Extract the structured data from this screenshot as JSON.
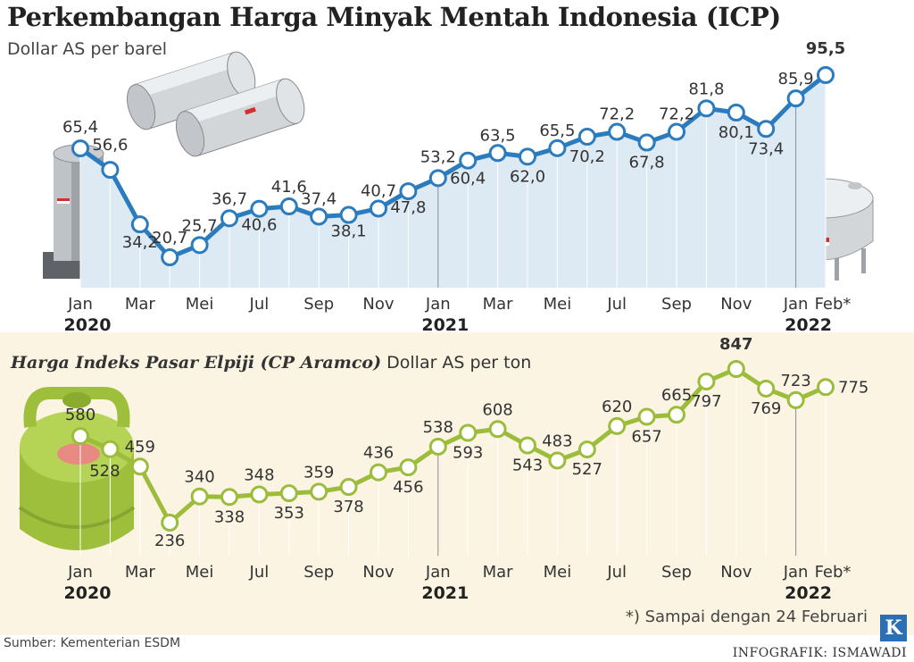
{
  "header": {
    "title": "Perkembangan Harga Minyak Mentah Indonesia (ICP)",
    "subtitle": "Dollar AS per barel"
  },
  "lpg_header": {
    "title": "Harga Indeks Pasar Elpiji (CP Aramco)",
    "unit": "Dollar AS per ton"
  },
  "footer": {
    "footnote": "*) Sampai dengan 24 Februari",
    "source": "Sumber: Kementerian ESDM",
    "credit": "INFOGRAFIK: ISMAWADI",
    "logo": "K"
  },
  "colors": {
    "icp_line": "#2b7bbf",
    "icp_area": "#dde9f3",
    "lpg_line": "#9cbd3b",
    "lpg_band": "#fbf4e2"
  },
  "icons": [
    "oil-storage-tanks-icon",
    "oil-silo-icon",
    "round-oil-tank-icon",
    "lpg-gas-cylinder-icon"
  ],
  "chart_data": [
    {
      "type": "line",
      "name": "icp",
      "title": "Perkembangan Harga Minyak Mentah Indonesia (ICP)",
      "ylabel": "Dollar AS per barel",
      "x": [
        "Jan 2020",
        "Feb 2020",
        "Mar 2020",
        "Apr 2020",
        "Mei 2020",
        "Jun 2020",
        "Jul 2020",
        "Agu 2020",
        "Sep 2020",
        "Okt 2020",
        "Nov 2020",
        "Des 2020",
        "Jan 2021",
        "Feb 2021",
        "Mar 2021",
        "Apr 2021",
        "Mei 2021",
        "Jun 2021",
        "Jul 2021",
        "Agu 2021",
        "Sep 2021",
        "Okt 2021",
        "Nov 2021",
        "Des 2021",
        "Jan 2022",
        "Feb 2022"
      ],
      "values": [
        65.4,
        56.6,
        34.2,
        20.7,
        25.7,
        36.7,
        40.6,
        41.6,
        37.4,
        38.1,
        40.7,
        47.8,
        53.2,
        60.4,
        63.5,
        62.0,
        65.5,
        70.2,
        72.2,
        67.8,
        72.2,
        81.8,
        80.1,
        73.4,
        85.9,
        95.5
      ],
      "value_labels": [
        "65,4",
        "56,6",
        "34,2",
        "20,7",
        "25,7",
        "36,7",
        "40,6",
        "41,6",
        "37,4",
        "38,1",
        "40,7",
        "47,8",
        "53,2",
        "60,4",
        "63,5",
        "62,0",
        "65,5",
        "70,2",
        "72,2",
        "67,8",
        "72,2",
        "81,8",
        "80,1",
        "73,4",
        "85,9",
        "95,5"
      ],
      "highlight_last": true,
      "ylim": [
        0,
        100
      ],
      "tick_labels": [
        "Jan",
        "Mar",
        "Mei",
        "Jul",
        "Sep",
        "Nov",
        "Jan",
        "Mar",
        "Mei",
        "Jul",
        "Sep",
        "Nov",
        "Jan",
        "Feb*"
      ],
      "year_labels": [
        "2020",
        "2021",
        "2022"
      ]
    },
    {
      "type": "line",
      "name": "lpg",
      "title": "Harga Indeks Pasar Elpiji (CP Aramco)",
      "ylabel": "Dollar AS per ton",
      "x": [
        "Jan 2020",
        "Feb 2020",
        "Mar 2020",
        "Apr 2020",
        "Mei 2020",
        "Jun 2020",
        "Jul 2020",
        "Agu 2020",
        "Sep 2020",
        "Okt 2020",
        "Nov 2020",
        "Des 2020",
        "Jan 2021",
        "Feb 2021",
        "Mar 2021",
        "Apr 2021",
        "Mei 2021",
        "Jun 2021",
        "Jul 2021",
        "Agu 2021",
        "Sep 2021",
        "Okt 2021",
        "Nov 2021",
        "Des 2021",
        "Jan 2022",
        "Feb 2022"
      ],
      "values": [
        580,
        528,
        459,
        236,
        340,
        338,
        348,
        353,
        359,
        378,
        436,
        456,
        538,
        593,
        608,
        543,
        483,
        527,
        620,
        657,
        665,
        797,
        847,
        769,
        723,
        775
      ],
      "value_labels": [
        "580",
        "528",
        "459",
        "236",
        "340",
        "338",
        "348",
        "353",
        "359",
        "378",
        "436",
        "456",
        "538",
        "593",
        "608",
        "543",
        "483",
        "527",
        "620",
        "657",
        "665",
        "797",
        "847",
        "769",
        "723",
        "775"
      ],
      "highlight_index": 22,
      "ylim": [
        200,
        900
      ],
      "tick_labels": [
        "Jan",
        "Mar",
        "Mei",
        "Jul",
        "Sep",
        "Nov",
        "Jan",
        "Mar",
        "Mei",
        "Jul",
        "Sep",
        "Nov",
        "Jan",
        "Feb*"
      ],
      "year_labels": [
        "2020",
        "2021",
        "2022"
      ]
    }
  ]
}
